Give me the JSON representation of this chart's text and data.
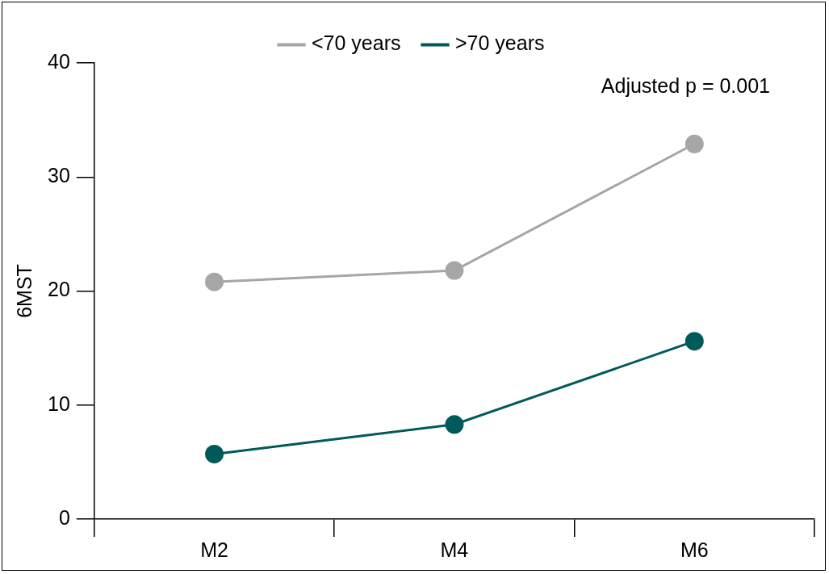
{
  "chart_data": {
    "type": "line",
    "ylabel": "6MST",
    "categories": [
      "M2",
      "M4",
      "M6"
    ],
    "series": [
      {
        "name": "<70 years",
        "color": "#a6a6a6",
        "values": [
          20.8,
          21.8,
          32.9
        ]
      },
      {
        "name": ">70 years",
        "color": "#005a5a",
        "values": [
          5.7,
          8.3,
          15.6
        ]
      }
    ],
    "ylim": [
      0,
      40
    ],
    "yticks": [
      0,
      10,
      20,
      30,
      40
    ],
    "grid": false,
    "legend": "top",
    "marker": "circle",
    "line_style": "solid",
    "annotations": [
      "Adjusted p = 0.001"
    ]
  }
}
